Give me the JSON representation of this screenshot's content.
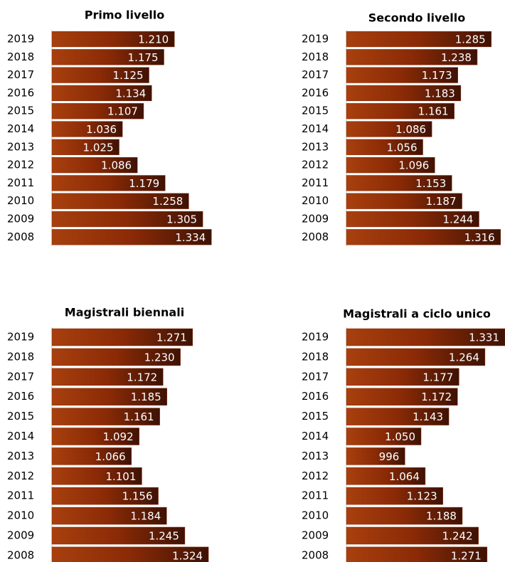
{
  "chart_data": [
    {
      "type": "bar",
      "title": "Primo livello",
      "categories": [
        "2019",
        "2018",
        "2017",
        "2016",
        "2015",
        "2014",
        "2013",
        "2012",
        "2011",
        "2010",
        "2009",
        "2008"
      ],
      "values": [
        1210,
        1175,
        1125,
        1134,
        1107,
        1036,
        1025,
        1086,
        1179,
        1258,
        1305,
        1334
      ],
      "value_labels": [
        "1.210",
        "1.175",
        "1.125",
        "1.134",
        "1.107",
        "1.036",
        "1.025",
        "1.086",
        "1.179",
        "1.258",
        "1.305",
        "1.334"
      ],
      "xlim": [
        800,
        1350
      ],
      "color": "#8a2a06"
    },
    {
      "type": "bar",
      "title": "Secondo livello",
      "categories": [
        "2019",
        "2018",
        "2017",
        "2016",
        "2015",
        "2014",
        "2013",
        "2012",
        "2011",
        "2010",
        "2009",
        "2008"
      ],
      "values": [
        1285,
        1238,
        1173,
        1183,
        1161,
        1086,
        1056,
        1096,
        1153,
        1187,
        1244,
        1316
      ],
      "value_labels": [
        "1.285",
        "1.238",
        "1.173",
        "1.183",
        "1.161",
        "1.086",
        "1.056",
        "1.096",
        "1.153",
        "1.187",
        "1.244",
        "1.316"
      ],
      "xlim": [
        800,
        1350
      ],
      "color": "#8a2a06"
    },
    {
      "type": "bar",
      "title": "Magistrali biennali",
      "categories": [
        "2019",
        "2018",
        "2017",
        "2016",
        "2015",
        "2014",
        "2013",
        "2012",
        "2011",
        "2010",
        "2009",
        "2008"
      ],
      "values": [
        1271,
        1230,
        1172,
        1185,
        1161,
        1092,
        1066,
        1101,
        1156,
        1184,
        1245,
        1324
      ],
      "value_labels": [
        "1.271",
        "1.230",
        "1.172",
        "1.185",
        "1.161",
        "1.092",
        "1.066",
        "1.101",
        "1.156",
        "1.184",
        "1.245",
        "1.324"
      ],
      "xlim": [
        800,
        1350
      ],
      "color": "#8a2a06"
    },
    {
      "type": "bar",
      "title": "Magistrali a ciclo unico",
      "categories": [
        "2019",
        "2018",
        "2017",
        "2016",
        "2015",
        "2014",
        "2013",
        "2012",
        "2011",
        "2010",
        "2009",
        "2008"
      ],
      "values": [
        1331,
        1264,
        1177,
        1172,
        1143,
        1050,
        996,
        1064,
        1123,
        1188,
        1242,
        1271
      ],
      "value_labels": [
        "1.331",
        "1.264",
        "1.177",
        "1.172",
        "1.143",
        "1.050",
        "996",
        "1.064",
        "1.123",
        "1.188",
        "1.242",
        "1.271"
      ],
      "xlim": [
        800,
        1350
      ],
      "color": "#8a2a06"
    }
  ]
}
